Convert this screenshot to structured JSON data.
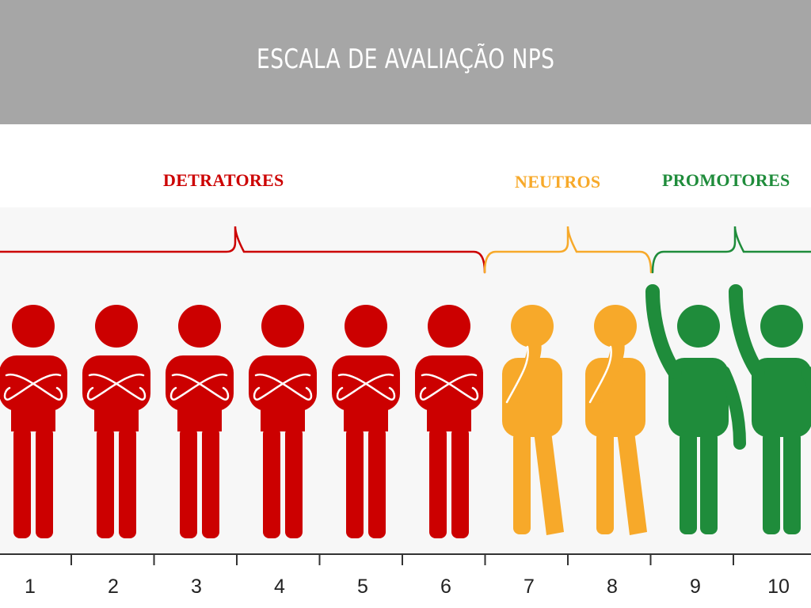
{
  "title": "ESCALA DE AVALIAÇÃO NPS",
  "colors": {
    "header_bg": "#a6a6a6",
    "detratores": "#cc0000",
    "neutros": "#f7a92a",
    "promotores": "#1f8c3b"
  },
  "groups": [
    {
      "key": "detratores",
      "label": "DETRATORES",
      "scores": [
        1,
        2,
        3,
        4,
        5,
        6
      ],
      "pose": "arms-crossed"
    },
    {
      "key": "neutros",
      "label": "NEUTROS",
      "scores": [
        7,
        8
      ],
      "pose": "hand-on-chin"
    },
    {
      "key": "promotores",
      "label": "PROMOTORES",
      "scores": [
        9,
        10
      ],
      "pose": "arm-raised"
    }
  ],
  "scale": [
    "1",
    "2",
    "3",
    "4",
    "5",
    "6",
    "7",
    "8",
    "9",
    "10"
  ]
}
